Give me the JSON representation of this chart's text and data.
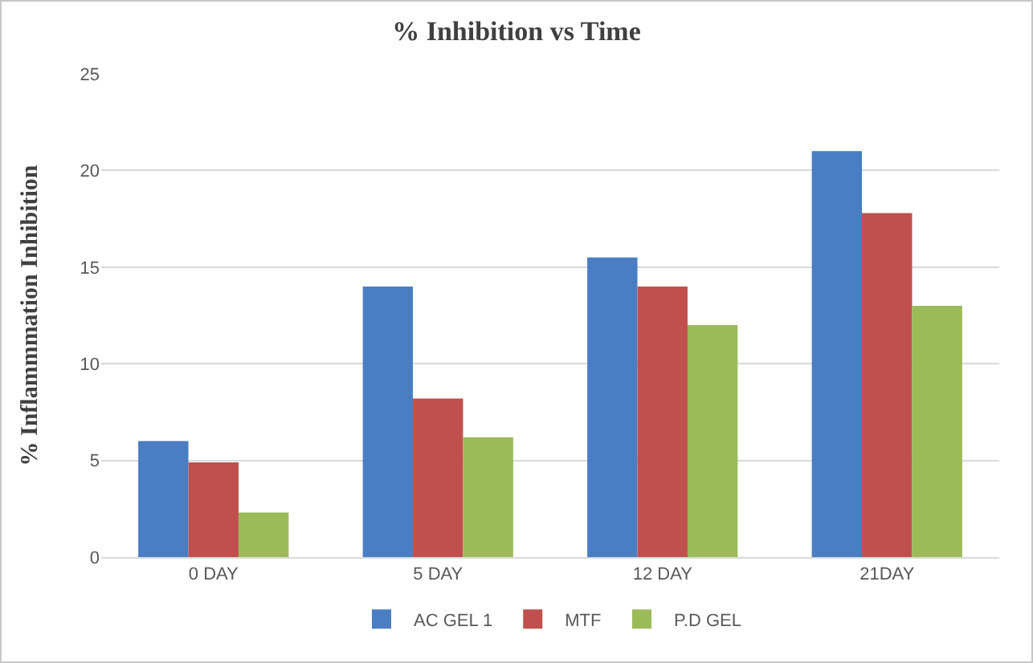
{
  "chart_data": {
    "type": "bar",
    "title": "% Inhibition vs Time",
    "ylabel": "% Inflammmation Inhibition",
    "categories": [
      "0 DAY",
      "5 DAY",
      "12 DAY",
      "21DAY"
    ],
    "series": [
      {
        "name": "AC GEL 1",
        "color": "#4a7dc2",
        "values": [
          6,
          14,
          15.5,
          21
        ]
      },
      {
        "name": "MTF",
        "color": "#c0504d",
        "values": [
          4.9,
          8.2,
          14,
          17.8
        ]
      },
      {
        "name": "P.D GEL",
        "color": "#9bbb59",
        "values": [
          2.3,
          6.2,
          12,
          13
        ]
      }
    ],
    "ylim": [
      0,
      25
    ],
    "yticks": [
      0,
      5,
      10,
      15,
      20,
      25
    ],
    "grid": "y",
    "legend": "bottom"
  }
}
